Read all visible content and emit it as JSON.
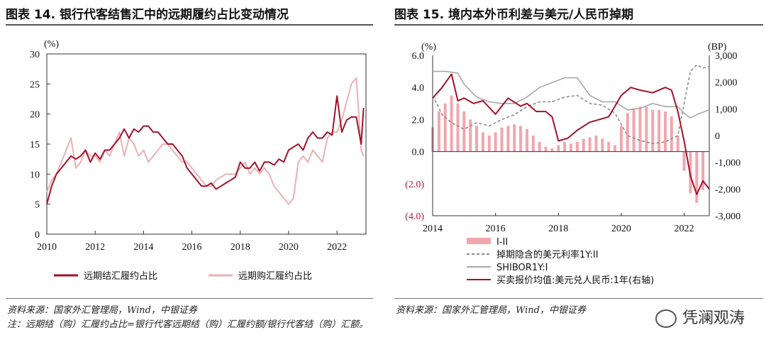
{
  "left": {
    "title": "图表 14. 银行代客结售汇中的远期履约占比变动情况",
    "source": "资料来源：国家外汇管理局，Wind，中银证券",
    "note": "注：远期结（购）汇履约占比=银行代客远期结（购）汇履约额/银行代客结（购）汇额。",
    "chart_data": {
      "type": "line",
      "unit_label": "(%)",
      "ylim": [
        0,
        30
      ],
      "yticks": [
        "0",
        "5",
        "10",
        "15",
        "20",
        "25",
        "30"
      ],
      "xlim": [
        2010,
        2023.2
      ],
      "xticks": [
        "2010",
        "2012",
        "2014",
        "2016",
        "2018",
        "2020",
        "2022"
      ],
      "legend_position": "bottom",
      "series": [
        {
          "name": "远期结汇履约占比",
          "color": "#a3122a",
          "x": [
            2010.0,
            2010.2,
            2010.4,
            2010.6,
            2010.8,
            2011.0,
            2011.2,
            2011.4,
            2011.6,
            2011.8,
            2012.0,
            2012.2,
            2012.4,
            2012.6,
            2012.8,
            2013.0,
            2013.2,
            2013.4,
            2013.6,
            2013.8,
            2014.0,
            2014.2,
            2014.4,
            2014.6,
            2014.8,
            2015.0,
            2015.2,
            2015.4,
            2015.6,
            2015.8,
            2016.0,
            2016.2,
            2016.4,
            2016.6,
            2016.8,
            2017.0,
            2017.2,
            2017.4,
            2017.6,
            2017.8,
            2018.0,
            2018.2,
            2018.4,
            2018.6,
            2018.8,
            2019.0,
            2019.2,
            2019.4,
            2019.6,
            2019.8,
            2020.0,
            2020.2,
            2020.4,
            2020.6,
            2020.8,
            2021.0,
            2021.2,
            2021.4,
            2021.6,
            2021.8,
            2022.0,
            2022.2,
            2022.4,
            2022.6,
            2022.8,
            2023.0,
            2023.1
          ],
          "values": [
            5,
            8,
            10,
            11,
            12,
            13,
            12.5,
            13,
            14,
            12,
            13.5,
            12.5,
            14,
            14,
            15,
            16,
            17.5,
            16,
            17.5,
            17,
            18,
            18,
            17,
            17,
            16,
            15,
            15,
            14,
            13,
            11,
            10,
            9,
            8,
            8,
            8.5,
            7.5,
            8,
            8.5,
            9,
            9.5,
            12,
            11,
            11,
            12,
            10.5,
            12,
            12,
            11.5,
            12.5,
            12,
            14,
            14.5,
            15,
            14,
            16,
            17,
            16,
            16,
            17,
            16.5,
            23,
            17,
            19,
            19.5,
            19.5,
            15,
            21
          ]
        },
        {
          "name": "远期购汇履约占比",
          "color": "#eab2b2",
          "x": [
            2010.0,
            2010.2,
            2010.4,
            2010.6,
            2010.8,
            2011.0,
            2011.2,
            2011.4,
            2011.6,
            2011.8,
            2012.0,
            2012.2,
            2012.4,
            2012.6,
            2012.8,
            2013.0,
            2013.2,
            2013.4,
            2013.6,
            2013.8,
            2014.0,
            2014.2,
            2014.4,
            2014.6,
            2014.8,
            2015.0,
            2015.2,
            2015.4,
            2015.6,
            2015.8,
            2016.0,
            2016.2,
            2016.4,
            2016.6,
            2016.8,
            2017.0,
            2017.2,
            2017.4,
            2017.6,
            2017.8,
            2018.0,
            2018.2,
            2018.4,
            2018.6,
            2018.8,
            2019.0,
            2019.2,
            2019.4,
            2019.6,
            2019.8,
            2020.0,
            2020.2,
            2020.4,
            2020.6,
            2020.8,
            2021.0,
            2021.2,
            2021.4,
            2021.6,
            2021.8,
            2022.0,
            2022.2,
            2022.4,
            2022.6,
            2022.8,
            2023.0,
            2023.1
          ],
          "values": [
            7,
            9,
            10,
            12,
            14,
            16,
            11,
            12,
            14,
            13,
            13,
            12,
            14,
            13,
            15,
            17,
            13,
            16,
            15,
            13,
            14,
            12,
            13,
            14,
            15,
            15,
            14,
            13,
            12,
            12,
            11,
            10,
            9,
            8,
            8,
            9,
            9.5,
            10,
            10,
            10,
            11,
            12,
            10,
            11,
            10,
            11,
            10,
            8,
            7,
            6,
            5,
            6,
            12,
            13,
            12,
            14,
            13,
            12,
            16,
            17,
            17,
            19,
            22,
            25,
            26,
            14,
            13
          ]
        }
      ]
    }
  },
  "right": {
    "title": "图表 15. 境内本外币利差与美元/人民币掉期",
    "source": "资料来源：国家外汇管理局，Wind，中银证券",
    "watermark": "凭澜观涛",
    "chart_data": {
      "type": "bar+line",
      "left_unit_label": "(%)",
      "right_unit_label": "(BP)",
      "ylim_left": [
        -4.0,
        6.0
      ],
      "ylim_right": [
        -3000,
        3000
      ],
      "yticks_left": [
        "(4.0)",
        "(2.0)",
        "0.0",
        "2.0",
        "4.0",
        "6.0"
      ],
      "yticks_left_values": [
        -4,
        -2,
        0,
        2,
        4,
        6
      ],
      "yticks_left_colors": [
        "#c0172f",
        "#c0172f",
        "#111111",
        "#111111",
        "#111111",
        "#111111"
      ],
      "yticks_right": [
        "-3,000",
        "-2,000",
        "-1,000",
        "0",
        "1,000",
        "2,000",
        "3,000"
      ],
      "yticks_right_values": [
        -3000,
        -2000,
        -1000,
        0,
        1000,
        2000,
        3000
      ],
      "xlim": [
        2014,
        2022.8
      ],
      "xticks": [
        "2014",
        "2016",
        "2018",
        "2020",
        "2022"
      ],
      "legend_position": "bottom",
      "bars": {
        "name": "I-II",
        "color": "#f2a6ad",
        "x": [
          2014.0,
          2014.2,
          2014.4,
          2014.6,
          2014.8,
          2015.0,
          2015.2,
          2015.4,
          2015.6,
          2015.8,
          2016.0,
          2016.2,
          2016.4,
          2016.6,
          2016.8,
          2017.0,
          2017.2,
          2017.4,
          2017.6,
          2017.8,
          2018.0,
          2018.2,
          2018.4,
          2018.6,
          2018.8,
          2019.0,
          2019.2,
          2019.4,
          2019.6,
          2019.8,
          2020.0,
          2020.2,
          2020.4,
          2020.6,
          2020.8,
          2021.0,
          2021.2,
          2021.4,
          2021.6,
          2021.8,
          2022.0,
          2022.2,
          2022.4,
          2022.6
        ],
        "values": [
          1.5,
          2.5,
          3.0,
          3.5,
          3.0,
          2.5,
          2.0,
          1.6,
          1.2,
          1.0,
          1.2,
          1.5,
          1.6,
          1.7,
          1.6,
          1.4,
          1.0,
          0.6,
          0.3,
          0.2,
          0.4,
          0.6,
          0.5,
          0.6,
          0.8,
          0.9,
          1.0,
          0.8,
          0.6,
          0.4,
          1.6,
          2.4,
          2.7,
          2.8,
          2.8,
          2.6,
          2.6,
          2.5,
          2.2,
          1.0,
          -1.2,
          -2.6,
          -3.2,
          -2.4
        ]
      },
      "series": [
        {
          "name": "掉期隐含的美元利率1Y:II",
          "color": "#8a8a8a",
          "dashed": true,
          "axis": "left",
          "x": [
            2014.0,
            2014.3,
            2014.6,
            2015.0,
            2015.4,
            2015.8,
            2016.2,
            2016.6,
            2017.0,
            2017.4,
            2017.8,
            2018.2,
            2018.6,
            2019.0,
            2019.4,
            2019.8,
            2020.2,
            2020.6,
            2021.0,
            2021.4,
            2021.8,
            2022.2,
            2022.4,
            2022.6,
            2022.8
          ],
          "values": [
            3.5,
            2.3,
            1.8,
            1.4,
            1.8,
            1.6,
            2.0,
            2.3,
            2.8,
            3.1,
            3.1,
            3.4,
            3.5,
            3.0,
            2.9,
            2.4,
            1.0,
            0.7,
            0.5,
            0.6,
            1.0,
            5.0,
            5.4,
            5.2,
            5.3
          ]
        },
        {
          "name": "SHIBOR1Y:I",
          "color": "#a8a8a8",
          "dashed": false,
          "axis": "left",
          "x": [
            2014.0,
            2014.4,
            2014.8,
            2015.0,
            2015.4,
            2015.8,
            2016.2,
            2016.6,
            2017.0,
            2017.4,
            2017.8,
            2018.2,
            2018.6,
            2019.0,
            2019.4,
            2019.8,
            2020.2,
            2020.6,
            2021.0,
            2021.4,
            2021.8,
            2022.0,
            2022.2,
            2022.4,
            2022.8
          ],
          "values": [
            5.0,
            5.0,
            4.9,
            4.2,
            3.4,
            3.1,
            3.0,
            3.0,
            3.4,
            4.0,
            4.3,
            4.6,
            4.6,
            3.5,
            3.1,
            3.1,
            2.6,
            2.7,
            3.0,
            2.8,
            2.8,
            2.4,
            2.1,
            2.3,
            2.6
          ]
        },
        {
          "name": "买卖报价均值:美元兑人民币:1年(右轴)",
          "color": "#a3122a",
          "dashed": false,
          "axis": "right",
          "x": [
            2014.0,
            2014.3,
            2014.6,
            2014.8,
            2015.0,
            2015.3,
            2015.6,
            2016.0,
            2016.4,
            2016.8,
            2017.0,
            2017.3,
            2017.6,
            2017.8,
            2018.0,
            2018.3,
            2018.6,
            2019.0,
            2019.3,
            2019.6,
            2020.0,
            2020.3,
            2020.6,
            2021.0,
            2021.4,
            2021.6,
            2021.8,
            2022.0,
            2022.2,
            2022.4,
            2022.6,
            2022.8
          ],
          "values": [
            1400,
            1800,
            2300,
            1300,
            1400,
            1200,
            1300,
            800,
            1400,
            1100,
            1200,
            900,
            900,
            700,
            -200,
            -100,
            200,
            500,
            600,
            700,
            1500,
            1800,
            1700,
            1600,
            1800,
            1700,
            900,
            -200,
            -1500,
            -2200,
            -1700,
            -2000
          ]
        }
      ]
    }
  }
}
